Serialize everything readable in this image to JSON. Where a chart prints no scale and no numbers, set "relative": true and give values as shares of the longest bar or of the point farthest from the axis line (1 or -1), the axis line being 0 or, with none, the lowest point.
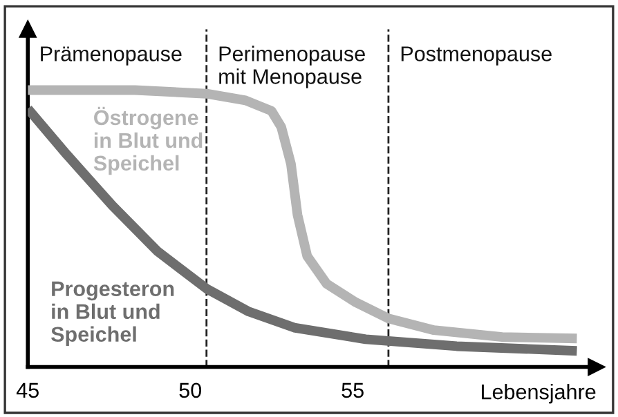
{
  "chart_data": {
    "type": "line",
    "relative": true,
    "xlabel": "Lebensjahre",
    "xlim": [
      45,
      62.5
    ],
    "xticks": [
      45,
      50,
      55
    ],
    "grid": false,
    "legend": false,
    "marker": "none",
    "line_style": "solid",
    "series": [
      {
        "name": "Östrogene\nin Blut und\nSpeichel",
        "color": "#b4b4b4",
        "x": [
          45,
          48.3,
          50.5,
          51.7,
          52.5,
          52.8,
          53.1,
          53.3,
          53.6,
          54.2,
          55.1,
          56.1,
          57.5,
          59.6,
          61.9
        ],
        "values": [
          1.0,
          1.0,
          0.987,
          0.963,
          0.925,
          0.867,
          0.733,
          0.55,
          0.4,
          0.3,
          0.233,
          0.175,
          0.133,
          0.108,
          0.103
        ]
      },
      {
        "name": "Progesteron\nin Blut und\nSpeichel",
        "color": "#6e6e6e",
        "x": [
          45,
          46.2,
          47.6,
          49.0,
          50.5,
          51.8,
          53.2,
          55.4,
          58.2,
          61.9
        ],
        "values": [
          0.933,
          0.767,
          0.583,
          0.417,
          0.283,
          0.2,
          0.142,
          0.1,
          0.075,
          0.058
        ]
      }
    ],
    "ref_lines": [
      {
        "axis": "x",
        "value": 50.5,
        "line_style": "dashed",
        "color": "#222222"
      },
      {
        "axis": "x",
        "value": 56.1,
        "line_style": "dashed",
        "color": "#222222"
      }
    ],
    "annotations": [
      "Prämenopause",
      "Perimenopause\nmit Menopause",
      "Postmenopause"
    ]
  }
}
